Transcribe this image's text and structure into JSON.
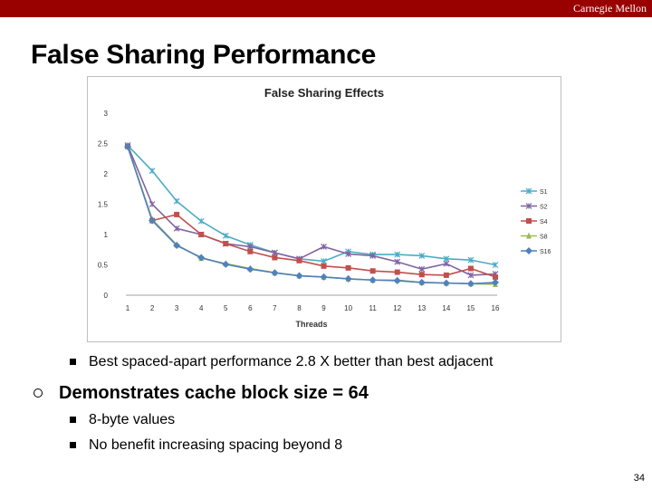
{
  "header": {
    "brand": "Carnegie Mellon"
  },
  "slide": {
    "title": "False Sharing Performance",
    "bullets": {
      "sub1": "Best spaced-apart performance 2.8 X better than best adjacent",
      "main": "Demonstrates cache block size = 64",
      "sub2": "8-byte values",
      "sub3": "No benefit increasing spacing beyond 8"
    },
    "page_number": "34"
  },
  "chart_data": {
    "type": "line",
    "title": "False Sharing Effects",
    "xlabel": "Threads",
    "ylabel": "",
    "x": [
      1,
      2,
      3,
      4,
      5,
      6,
      7,
      8,
      9,
      10,
      11,
      12,
      13,
      14,
      15,
      16
    ],
    "ylim": [
      0,
      3
    ],
    "yticks": [
      0,
      0.5,
      1,
      1.5,
      2,
      2.5,
      3
    ],
    "grid": false,
    "legend": "right",
    "series": [
      {
        "name": "S1",
        "color": "#4bacc6",
        "marker": "x",
        "values": [
          2.47,
          2.05,
          1.55,
          1.22,
          0.98,
          0.83,
          0.7,
          0.6,
          0.56,
          0.72,
          0.67,
          0.67,
          0.65,
          0.6,
          0.58,
          0.5
        ]
      },
      {
        "name": "S2",
        "color": "#8064a2",
        "marker": "x",
        "values": [
          2.47,
          1.5,
          1.1,
          1.0,
          0.85,
          0.8,
          0.7,
          0.6,
          0.8,
          0.68,
          0.65,
          0.55,
          0.43,
          0.52,
          0.33,
          0.35
        ]
      },
      {
        "name": "S4",
        "color": "#c0504d",
        "marker": "square",
        "values": [
          2.45,
          1.23,
          1.33,
          1.0,
          0.85,
          0.72,
          0.62,
          0.57,
          0.48,
          0.45,
          0.4,
          0.38,
          0.34,
          0.33,
          0.44,
          0.3
        ]
      },
      {
        "name": "S8",
        "color": "#9bbb59",
        "marker": "triangle",
        "values": [
          2.45,
          1.25,
          0.83,
          0.61,
          0.52,
          0.44,
          0.37,
          0.32,
          0.3,
          0.27,
          0.25,
          0.25,
          0.21,
          0.2,
          0.19,
          0.18
        ]
      },
      {
        "name": "S16",
        "color": "#4f81bd",
        "marker": "diamond",
        "values": [
          2.45,
          1.23,
          0.82,
          0.62,
          0.51,
          0.43,
          0.37,
          0.32,
          0.3,
          0.27,
          0.25,
          0.24,
          0.21,
          0.2,
          0.19,
          0.21
        ]
      }
    ]
  }
}
